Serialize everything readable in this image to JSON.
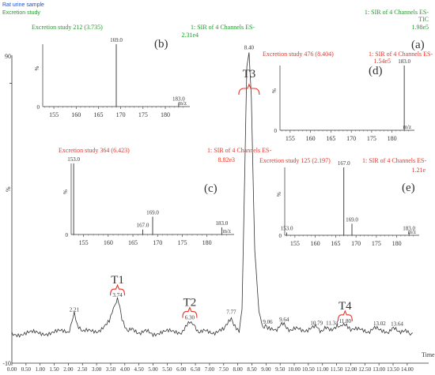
{
  "chart_data": {
    "type": "line",
    "header": {
      "sample": "Rat urine sample",
      "study": "Excretion study"
    },
    "colors": {
      "main": "#333333",
      "green": "#22992a",
      "red": "#e8332a",
      "blue": "#1f4fd0"
    },
    "main": {
      "title_line1": "1: SIR of 4 Channels ES-",
      "title_line2": "TIC",
      "title_line3": "1.98e5",
      "panel_label": "(a)",
      "ylabel": "%",
      "xlabel": "Time",
      "xlim": [
        0.0,
        14.2
      ],
      "ylim": [
        -10,
        100
      ],
      "x_ticks": [
        "0.00",
        "0.50",
        "1.00",
        "1.50",
        "2.00",
        "2.50",
        "3.00",
        "3.50",
        "4.00",
        "4.50",
        "5.00",
        "5.50",
        "6.00",
        "6.50",
        "7.00",
        "7.50",
        "8.00",
        "8.50",
        "9.00",
        "9.50",
        "10.00",
        "10.50",
        "11.00",
        "11.50",
        "12.00",
        "12.50",
        "13.00",
        "13.50",
        "14.00"
      ],
      "y_ticks": [
        "90",
        "-10"
      ],
      "trace": {
        "x": [
          0.0,
          1.0,
          2.0,
          2.12,
          2.21,
          2.32,
          2.5,
          3.0,
          3.45,
          3.6,
          3.7,
          3.74,
          3.82,
          3.9,
          4.05,
          4.3,
          5.0,
          6.0,
          6.2,
          6.3,
          6.45,
          6.7,
          7.5,
          7.68,
          7.77,
          7.9,
          8.05,
          8.15,
          8.25,
          8.32,
          8.4,
          8.48,
          8.6,
          8.75,
          8.9,
          9.06,
          9.3,
          9.64,
          9.9,
          10.3,
          10.79,
          11.0,
          11.34,
          11.6,
          11.8,
          12.0,
          12.5,
          13.02,
          13.3,
          13.64,
          13.9,
          14.2
        ],
        "y": [
          0.5,
          0.8,
          1.2,
          4.5,
          7.3,
          4.0,
          1.0,
          1.5,
          4.5,
          9.5,
          12.0,
          12.5,
          10.0,
          6.5,
          2.5,
          1.5,
          0.8,
          1.3,
          4.0,
          4.5,
          3.0,
          1.0,
          1.5,
          5.0,
          6.5,
          3.5,
          2.0,
          10.0,
          60.0,
          96.0,
          101.0,
          85.0,
          30.0,
          8.0,
          2.5,
          3.0,
          2.2,
          3.8,
          1.8,
          2.0,
          2.6,
          1.8,
          2.6,
          2.5,
          3.3,
          2.0,
          1.4,
          2.4,
          1.5,
          2.2,
          1.0,
          0.8
        ]
      },
      "peak_labels": [
        {
          "x": 2.21,
          "y": 7.3,
          "text": "2.21"
        },
        {
          "x": 3.74,
          "y": 12.5,
          "text": "3.74"
        },
        {
          "x": 6.3,
          "y": 4.5,
          "text": "6.30"
        },
        {
          "x": 7.77,
          "y": 6.5,
          "text": "7.77"
        },
        {
          "x": 8.4,
          "y": 101.0,
          "text": "8.40"
        },
        {
          "x": 9.06,
          "y": 3.0,
          "text": "9.06"
        },
        {
          "x": 9.64,
          "y": 3.8,
          "text": "9.64"
        },
        {
          "x": 10.79,
          "y": 2.6,
          "text": "10.79"
        },
        {
          "x": 11.34,
          "y": 2.6,
          "text": "11.34"
        },
        {
          "x": 11.8,
          "y": 3.3,
          "text": "11.80"
        },
        {
          "x": 13.02,
          "y": 2.4,
          "text": "13.02"
        },
        {
          "x": 13.64,
          "y": 2.2,
          "text": "13.64"
        }
      ],
      "annotations": [
        {
          "text": "T1",
          "x": 3.74,
          "y": 12.5
        },
        {
          "text": "T2",
          "x": 6.3,
          "y": 4.5
        },
        {
          "text": "T3",
          "x": 8.4,
          "y": 101.0
        },
        {
          "text": "T4",
          "x": 11.8,
          "y": 3.3
        }
      ]
    },
    "insets": [
      {
        "id": "b",
        "label": "(b)",
        "title": "Excretion study 212 (3.735)",
        "channel": "1: SIR of 4 Channels ES-",
        "intensity": "2.31e4",
        "color": "green",
        "xlim": [
          152.5,
          185.5
        ],
        "x_ticks": [
          "155",
          "160",
          "165",
          "170",
          "175",
          "180"
        ],
        "xlabel": "m/z",
        "ylabel": "%",
        "y_ticks": [
          "0"
        ],
        "peaks": [
          {
            "mz": 169.0,
            "rel": 100,
            "label": "169.0"
          },
          {
            "mz": 183.0,
            "rel": 6,
            "label": "183.0"
          }
        ]
      },
      {
        "id": "d",
        "label": "(d)",
        "title": "Excretion study 476 (8.404)",
        "channel": "1: SIR of 4 Channels ES-",
        "intensity": "1.54e5",
        "color": "red",
        "xlim": [
          152.5,
          185.5
        ],
        "x_ticks": [
          "155",
          "160",
          "165",
          "170",
          "175",
          "180"
        ],
        "xlabel": "m/z",
        "ylabel": "%",
        "y_ticks": [
          "0"
        ],
        "peaks": [
          {
            "mz": 183.0,
            "rel": 100,
            "label": "183.0"
          }
        ]
      },
      {
        "id": "c",
        "label": "(c)",
        "title": "Excretion study 364 (6.423)",
        "channel": "1: SIR of 4 Channels ES-",
        "intensity": "8.82e3",
        "color": "red",
        "xlim": [
          152.5,
          185.5
        ],
        "x_ticks": [
          "155",
          "160",
          "165",
          "170",
          "175",
          "180"
        ],
        "xlabel": "m/z",
        "ylabel": "%",
        "y_ticks": [
          "0"
        ],
        "peaks": [
          {
            "mz": 153.0,
            "rel": 100,
            "label": "153.0"
          },
          {
            "mz": 167.0,
            "rel": 7,
            "label": "167.0"
          },
          {
            "mz": 169.0,
            "rel": 25,
            "label": "169.0"
          },
          {
            "mz": 183.0,
            "rel": 10,
            "label": "183.0"
          }
        ]
      },
      {
        "id": "e",
        "label": "(e)",
        "title": "Excretion study 125 (2.197)",
        "channel": "1: SIR of 4 Channels ES-",
        "intensity": "1.21e",
        "color": "red",
        "xlim": [
          152.5,
          185.5
        ],
        "x_ticks": [
          "155",
          "160",
          "165",
          "170",
          "175",
          "180"
        ],
        "xlabel": "m/z",
        "ylabel": "%",
        "y_ticks": [
          "0"
        ],
        "peaks": [
          {
            "mz": 153.0,
            "rel": 4,
            "label": "153.0"
          },
          {
            "mz": 167.0,
            "rel": 100,
            "label": "167.0"
          },
          {
            "mz": 169.0,
            "rel": 17,
            "label": "169.0"
          },
          {
            "mz": 183.0,
            "rel": 4,
            "label": "183.0"
          }
        ]
      }
    ]
  }
}
